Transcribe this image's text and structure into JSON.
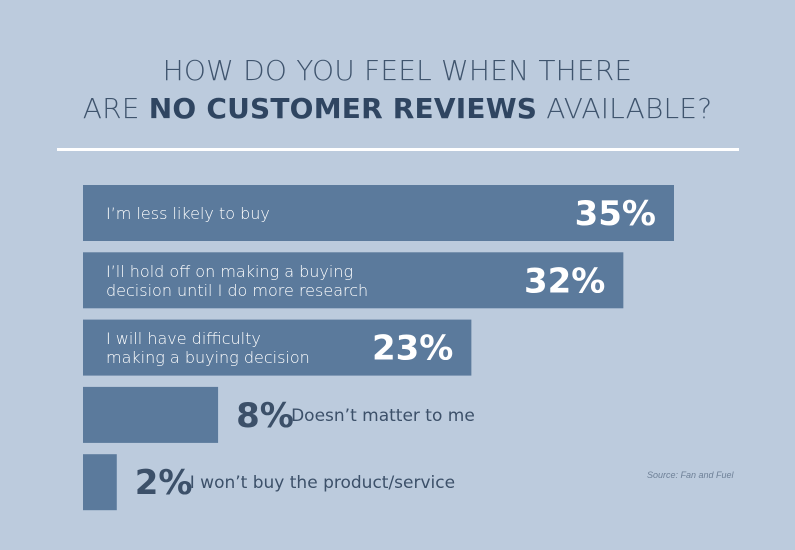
{
  "title": {
    "line1": "HOW DO YOU FEEL WHEN THERE",
    "line2_prefix": "ARE ",
    "line2_bold": "NO CUSTOMER REVIEWS",
    "line2_suffix": " AVAILABLE?"
  },
  "source": "Source: Fan and Fuel",
  "colors": {
    "background": "#bccbdd",
    "bar": "#5b7a9c",
    "title": "#3f546d",
    "rule": "#ffffff"
  },
  "chart_data": {
    "type": "bar",
    "orientation": "horizontal",
    "title": "HOW DO YOU FEEL WHEN THERE ARE NO CUSTOMER REVIEWS AVAILABLE?",
    "unit": "%",
    "xlim": [
      0,
      35
    ],
    "categories": [
      "I'm less likely to buy",
      "I'll hold off on making a buying decision until I do more research",
      "I will have difficulty making a buying decision",
      "Doesn't matter to me",
      "I won't buy the product/service"
    ],
    "category_lines": [
      [
        "I’m less likely to buy"
      ],
      [
        "I’ll hold off on making a buying",
        "decision until I do more research"
      ],
      [
        "I will have difficulty",
        "making a buying decision"
      ],
      [
        "Doesn’t matter to me"
      ],
      [
        "I won’t buy the product/service"
      ]
    ],
    "values": [
      35,
      32,
      23,
      8,
      2
    ],
    "value_labels": [
      "35%",
      "32%",
      "23%",
      "8%",
      "2%"
    ],
    "label_inside": [
      true,
      true,
      true,
      false,
      false
    ]
  }
}
